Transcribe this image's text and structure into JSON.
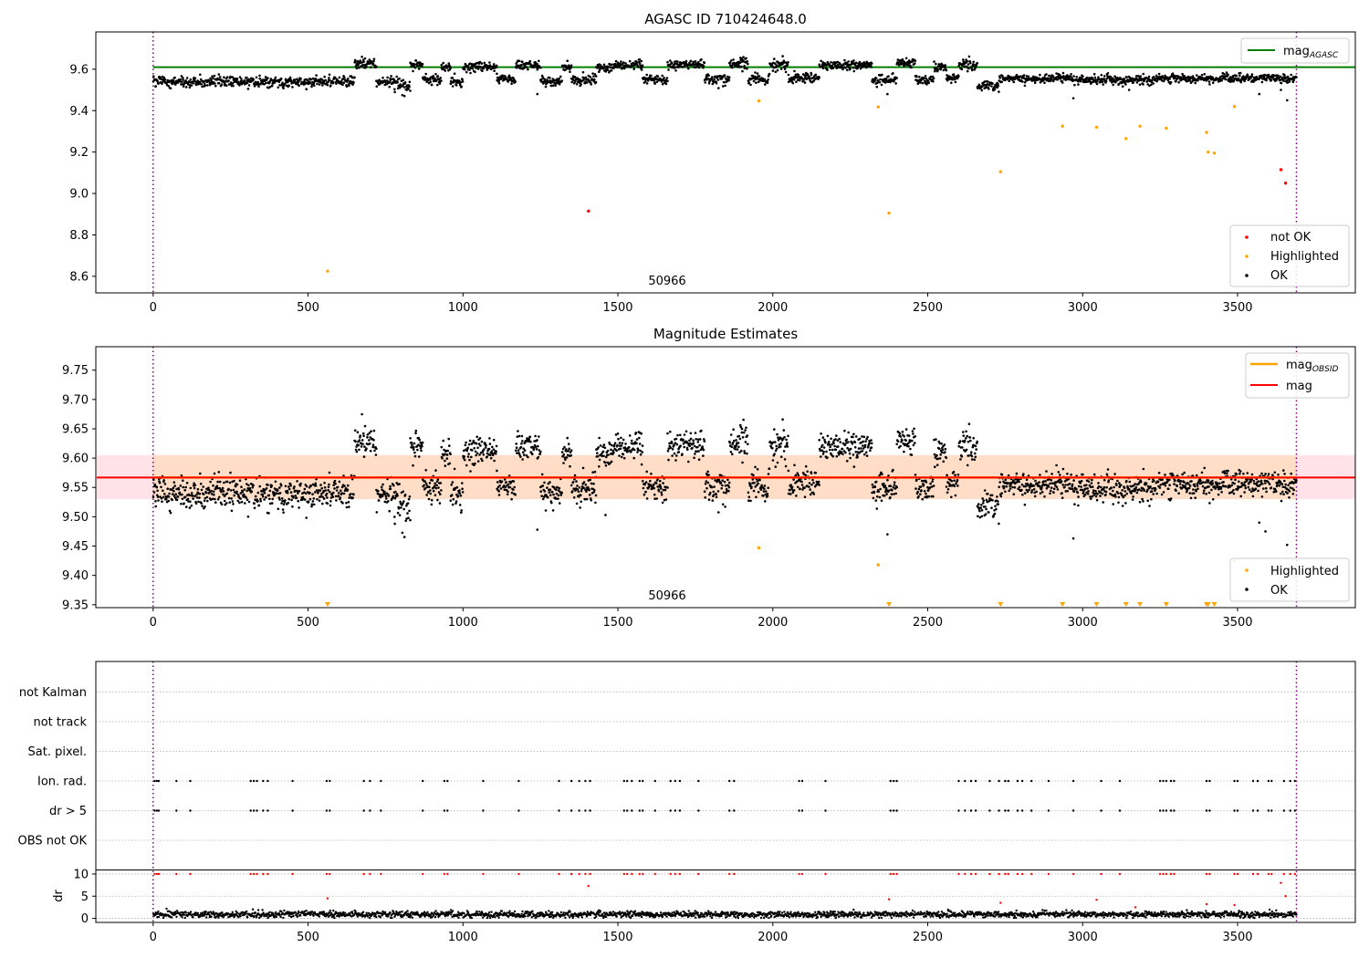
{
  "figure": {
    "title": "AGASC ID 710424648.0"
  },
  "colors": {
    "ok": "#000000",
    "highlighted": "#ffa500",
    "not_ok": "#ff0000",
    "mag_agasc": "#008000",
    "mag_line": "#ff0000",
    "mag_obsid": "#ffa500",
    "band_fill": "#ffc0cb",
    "band_fill_obs": "#ffdab9",
    "obs_boundary": "#800080",
    "event_points": "#000000",
    "dr_outlier": "#ff0000"
  },
  "chart_data": [
    {
      "type": "scatter",
      "title": "AGASC ID 710424648.0",
      "xlim": [
        -185,
        3880
      ],
      "ylim": [
        8.52,
        9.78
      ],
      "xticks": [
        0,
        500,
        1000,
        1500,
        2000,
        2500,
        3000,
        3500,
        4000
      ],
      "yticks": [
        8.6,
        8.8,
        9.0,
        9.2,
        9.4,
        9.6
      ],
      "ytick_labels": [
        "8.6",
        "8.8",
        "9.0",
        "9.2",
        "9.4",
        "9.6"
      ],
      "obs_boundaries": [
        0,
        3690
      ],
      "obsid_label": "50966",
      "obsid_label_x": 1840,
      "mag_agasc": 9.61,
      "legend_upper": [
        {
          "name": "mag",
          "sub": "AGASC"
        }
      ],
      "legend_lower": [
        "not OK",
        "Highlighted",
        "OK"
      ],
      "ok_segments": [
        {
          "x0": 0,
          "x1": 650,
          "mean": 9.54,
          "sd": 0.012
        },
        {
          "x0": 650,
          "x1": 720,
          "mean": 9.63,
          "sd": 0.012
        },
        {
          "x0": 720,
          "x1": 790,
          "mean": 9.54,
          "sd": 0.012
        },
        {
          "x0": 790,
          "x1": 830,
          "mean": 9.52,
          "sd": 0.015
        },
        {
          "x0": 830,
          "x1": 870,
          "mean": 9.62,
          "sd": 0.012
        },
        {
          "x0": 870,
          "x1": 930,
          "mean": 9.55,
          "sd": 0.012
        },
        {
          "x0": 930,
          "x1": 960,
          "mean": 9.61,
          "sd": 0.01
        },
        {
          "x0": 960,
          "x1": 1000,
          "mean": 9.54,
          "sd": 0.012
        },
        {
          "x0": 1000,
          "x1": 1110,
          "mean": 9.61,
          "sd": 0.012
        },
        {
          "x0": 1110,
          "x1": 1170,
          "mean": 9.55,
          "sd": 0.012
        },
        {
          "x0": 1170,
          "x1": 1250,
          "mean": 9.62,
          "sd": 0.012
        },
        {
          "x0": 1250,
          "x1": 1320,
          "mean": 9.54,
          "sd": 0.012
        },
        {
          "x0": 1320,
          "x1": 1350,
          "mean": 9.61,
          "sd": 0.012
        },
        {
          "x0": 1350,
          "x1": 1430,
          "mean": 9.55,
          "sd": 0.012
        },
        {
          "x0": 1430,
          "x1": 1480,
          "mean": 9.61,
          "sd": 0.012
        },
        {
          "x0": 1480,
          "x1": 1580,
          "mean": 9.62,
          "sd": 0.012
        },
        {
          "x0": 1580,
          "x1": 1660,
          "mean": 9.55,
          "sd": 0.012
        },
        {
          "x0": 1660,
          "x1": 1780,
          "mean": 9.62,
          "sd": 0.012
        },
        {
          "x0": 1780,
          "x1": 1860,
          "mean": 9.55,
          "sd": 0.012
        },
        {
          "x0": 1860,
          "x1": 1920,
          "mean": 9.63,
          "sd": 0.012
        },
        {
          "x0": 1920,
          "x1": 1990,
          "mean": 9.55,
          "sd": 0.012
        },
        {
          "x0": 1990,
          "x1": 2050,
          "mean": 9.62,
          "sd": 0.012
        },
        {
          "x0": 2050,
          "x1": 2150,
          "mean": 9.56,
          "sd": 0.012
        },
        {
          "x0": 2150,
          "x1": 2320,
          "mean": 9.62,
          "sd": 0.012
        },
        {
          "x0": 2320,
          "x1": 2400,
          "mean": 9.55,
          "sd": 0.012
        },
        {
          "x0": 2400,
          "x1": 2460,
          "mean": 9.63,
          "sd": 0.012
        },
        {
          "x0": 2460,
          "x1": 2520,
          "mean": 9.55,
          "sd": 0.012
        },
        {
          "x0": 2520,
          "x1": 2560,
          "mean": 9.61,
          "sd": 0.012
        },
        {
          "x0": 2560,
          "x1": 2600,
          "mean": 9.56,
          "sd": 0.012
        },
        {
          "x0": 2600,
          "x1": 2660,
          "mean": 9.62,
          "sd": 0.012
        },
        {
          "x0": 2660,
          "x1": 2730,
          "mean": 9.52,
          "sd": 0.012
        },
        {
          "x0": 2730,
          "x1": 3000,
          "mean": 9.555,
          "sd": 0.01
        },
        {
          "x0": 3000,
          "x1": 3250,
          "mean": 9.55,
          "sd": 0.012
        },
        {
          "x0": 3250,
          "x1": 3690,
          "mean": 9.555,
          "sd": 0.01
        }
      ],
      "ok_outliers": [
        {
          "x": 1240,
          "y": 9.48
        },
        {
          "x": 2370,
          "y": 9.48
        },
        {
          "x": 2970,
          "y": 9.46
        },
        {
          "x": 3570,
          "y": 9.48
        },
        {
          "x": 3640,
          "y": 9.5
        },
        {
          "x": 3660,
          "y": 9.45
        },
        {
          "x": 3150,
          "y": 9.5
        },
        {
          "x": 780,
          "y": 9.49
        }
      ],
      "highlighted": [
        {
          "x": 563,
          "y": 8.625
        },
        {
          "x": 1955,
          "y": 9.447
        },
        {
          "x": 2340,
          "y": 9.418
        },
        {
          "x": 2375,
          "y": 8.905
        },
        {
          "x": 2735,
          "y": 9.105
        },
        {
          "x": 2935,
          "y": 9.325
        },
        {
          "x": 3045,
          "y": 9.32
        },
        {
          "x": 3140,
          "y": 9.265
        },
        {
          "x": 3185,
          "y": 9.325
        },
        {
          "x": 3270,
          "y": 9.315
        },
        {
          "x": 3400,
          "y": 9.295
        },
        {
          "x": 3405,
          "y": 9.2
        },
        {
          "x": 3425,
          "y": 9.195
        },
        {
          "x": 3490,
          "y": 9.42
        }
      ],
      "not_ok": [
        {
          "x": 1405,
          "y": 8.915
        },
        {
          "x": 3640,
          "y": 9.115
        },
        {
          "x": 3655,
          "y": 9.05
        }
      ]
    },
    {
      "type": "scatter",
      "title": "Magnitude Estimates",
      "xlim": [
        -185,
        3880
      ],
      "ylim": [
        9.345,
        9.79
      ],
      "xticks": [
        0,
        500,
        1000,
        1500,
        2000,
        2500,
        3000,
        3500,
        4000
      ],
      "yticks": [
        9.35,
        9.4,
        9.45,
        9.5,
        9.55,
        9.6,
        9.65,
        9.7,
        9.75
      ],
      "ytick_labels": [
        "9.35",
        "9.40",
        "9.45",
        "9.50",
        "9.55",
        "9.60",
        "9.65",
        "9.70",
        "9.75"
      ],
      "obs_boundaries": [
        0,
        3690
      ],
      "obsid_label": "50966",
      "obsid_label_x": 1840,
      "mag": 9.567,
      "mag_obsid": 9.567,
      "band_all": [
        9.53,
        9.605
      ],
      "band_obs": [
        9.53,
        9.605
      ],
      "band_all_x": [
        -185,
        3880
      ],
      "band_obs_x": [
        0,
        3690
      ],
      "legend_upper": [
        {
          "name": "mag",
          "sub": "OBSID"
        },
        {
          "name": "mag",
          "sub": ""
        }
      ],
      "legend_lower": [
        "Highlighted",
        "OK"
      ],
      "highlighted": [
        {
          "x": 1955,
          "y": 9.447
        },
        {
          "x": 2340,
          "y": 9.418
        },
        {
          "x": 3490,
          "y": 9.425
        }
      ],
      "highlighted_below": [
        563,
        2375,
        2735,
        2935,
        3045,
        3140,
        3185,
        3270,
        3400,
        3405,
        3425
      ],
      "ok_outliers": [
        {
          "x": 1240,
          "y": 9.478
        },
        {
          "x": 2370,
          "y": 9.47
        },
        {
          "x": 2970,
          "y": 9.463
        },
        {
          "x": 3570,
          "y": 9.49
        },
        {
          "x": 3590,
          "y": 9.475
        },
        {
          "x": 3660,
          "y": 9.452
        },
        {
          "x": 780,
          "y": 9.488
        },
        {
          "x": 1460,
          "y": 9.503
        }
      ]
    },
    {
      "type": "scatter",
      "title": "",
      "xlim": [
        -185,
        3880
      ],
      "obs_boundaries": [
        0,
        3690
      ],
      "category_rows": [
        "not Kalman",
        "not track",
        "Sat. pixel.",
        "Ion. rad.",
        "dr > 5",
        "OBS not OK"
      ],
      "event_times": [
        5,
        12,
        18,
        75,
        120,
        315,
        325,
        335,
        355,
        370,
        450,
        560,
        570,
        680,
        700,
        735,
        870,
        940,
        950,
        1065,
        1180,
        1310,
        1350,
        1375,
        1395,
        1410,
        1520,
        1530,
        1545,
        1570,
        1580,
        1620,
        1670,
        1685,
        1700,
        1760,
        1860,
        1875,
        2085,
        2095,
        2170,
        2380,
        2390,
        2400,
        2600,
        2620,
        2640,
        2655,
        2700,
        2730,
        2750,
        2760,
        2790,
        2805,
        2835,
        2890,
        2970,
        3060,
        3120,
        3250,
        3260,
        3270,
        3285,
        3295,
        3400,
        3410,
        3490,
        3500,
        3550,
        3565,
        3600,
        3610,
        3650,
        3670,
        3685
      ],
      "dr_ylabel": "dr",
      "dr_ylim": [
        -0.5,
        10.5
      ],
      "dr_yticks": [
        0,
        5,
        10
      ],
      "dr_ytick_labels": [
        "0",
        "5",
        "10"
      ],
      "dr_mean": 0.9,
      "dr_outliers": [
        {
          "x": 563,
          "y": 4.5
        },
        {
          "x": 1405,
          "y": 7.3
        },
        {
          "x": 2375,
          "y": 4.3
        },
        {
          "x": 2735,
          "y": 3.5
        },
        {
          "x": 3045,
          "y": 4.2
        },
        {
          "x": 3400,
          "y": 3.2
        },
        {
          "x": 3490,
          "y": 3.0
        },
        {
          "x": 3640,
          "y": 8.0
        },
        {
          "x": 3655,
          "y": 5.0
        },
        {
          "x": 3170,
          "y": 2.5
        }
      ]
    }
  ]
}
